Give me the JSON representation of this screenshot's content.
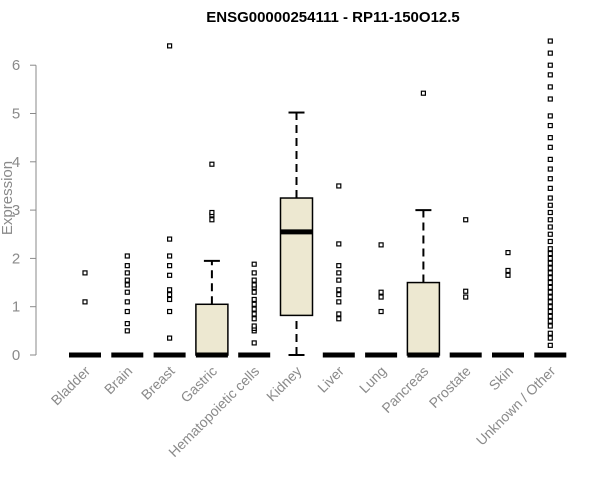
{
  "chart_data": {
    "type": "box",
    "title": "ENSG00000254111 - RP11-150O12.5",
    "ylabel": "Expression",
    "xlabel": "",
    "ylim": [
      0,
      6.5
    ],
    "yticks": [
      0,
      1,
      2,
      3,
      4,
      5,
      6
    ],
    "box_fill": "#ede8d1",
    "categories": [
      "Bladder",
      "Brain",
      "Breast",
      "Gastric",
      "Hematopoietic cells",
      "Kidney",
      "Liver",
      "Lung",
      "Pancreas",
      "Prostate",
      "Skin",
      "Unknown / Other"
    ],
    "boxes": [
      {
        "q1": 0,
        "median": 0,
        "q3": 0,
        "whisker_low": 0,
        "whisker_high": 0,
        "outliers": [
          1.1,
          1.7
        ]
      },
      {
        "q1": 0,
        "median": 0,
        "q3": 0,
        "whisker_low": 0,
        "whisker_high": 0,
        "outliers": [
          0.5,
          0.65,
          0.9,
          1.1,
          1.3,
          1.45,
          1.55,
          1.7,
          1.85,
          2.05
        ]
      },
      {
        "q1": 0,
        "median": 0,
        "q3": 0,
        "whisker_low": 0,
        "whisker_high": 0,
        "outliers": [
          0.35,
          0.9,
          1.15,
          1.25,
          1.35,
          1.65,
          1.85,
          2.05,
          2.4,
          6.4
        ]
      },
      {
        "q1": 0,
        "median": 0,
        "q3": 1.05,
        "whisker_low": 0,
        "whisker_high": 1.95,
        "outliers": [
          2.8,
          2.9,
          2.95,
          3.95
        ]
      },
      {
        "q1": 0,
        "median": 0,
        "q3": 0,
        "whisker_low": 0,
        "whisker_high": 0,
        "outliers": [
          0.25,
          0.5,
          0.55,
          0.6,
          0.75,
          0.85,
          0.95,
          1.05,
          1.15,
          1.3,
          1.4,
          1.45,
          1.55,
          1.7,
          1.88
        ]
      },
      {
        "q1": 0.82,
        "median": 2.55,
        "q3": 3.25,
        "whisker_low": 0,
        "whisker_high": 5.02,
        "outliers": []
      },
      {
        "q1": 0,
        "median": 0,
        "q3": 0,
        "whisker_low": 0,
        "whisker_high": 0,
        "outliers": [
          0.75,
          0.85,
          1.1,
          1.25,
          1.35,
          1.55,
          1.7,
          1.85,
          2.3,
          3.5
        ]
      },
      {
        "q1": 0,
        "median": 0,
        "q3": 0,
        "whisker_low": 0,
        "whisker_high": 0,
        "outliers": [
          0.9,
          1.2,
          1.3,
          2.28
        ]
      },
      {
        "q1": 0,
        "median": 0,
        "q3": 1.5,
        "whisker_low": 0,
        "whisker_high": 3.0,
        "outliers": [
          5.42
        ]
      },
      {
        "q1": 0,
        "median": 0,
        "q3": 0,
        "whisker_low": 0,
        "whisker_high": 0,
        "outliers": [
          1.2,
          1.32,
          2.8
        ]
      },
      {
        "q1": 0,
        "median": 0,
        "q3": 0,
        "whisker_low": 0,
        "whisker_high": 0,
        "outliers": [
          1.65,
          1.75,
          2.12
        ]
      },
      {
        "q1": 0,
        "median": 0,
        "q3": 0,
        "whisker_low": 0,
        "whisker_high": 0,
        "outliers": [
          0.2,
          0.35,
          0.45,
          0.6,
          0.7,
          0.8,
          0.9,
          1.0,
          1.1,
          1.2,
          1.3,
          1.4,
          1.5,
          1.6,
          1.7,
          1.8,
          1.9,
          2.0,
          2.1,
          2.2,
          2.35,
          2.5,
          2.65,
          2.8,
          2.95,
          3.1,
          3.25,
          3.45,
          3.65,
          3.85,
          4.05,
          4.3,
          4.5,
          4.75,
          4.95,
          5.3,
          5.55,
          5.8,
          6.0,
          6.25,
          6.5
        ]
      }
    ]
  }
}
